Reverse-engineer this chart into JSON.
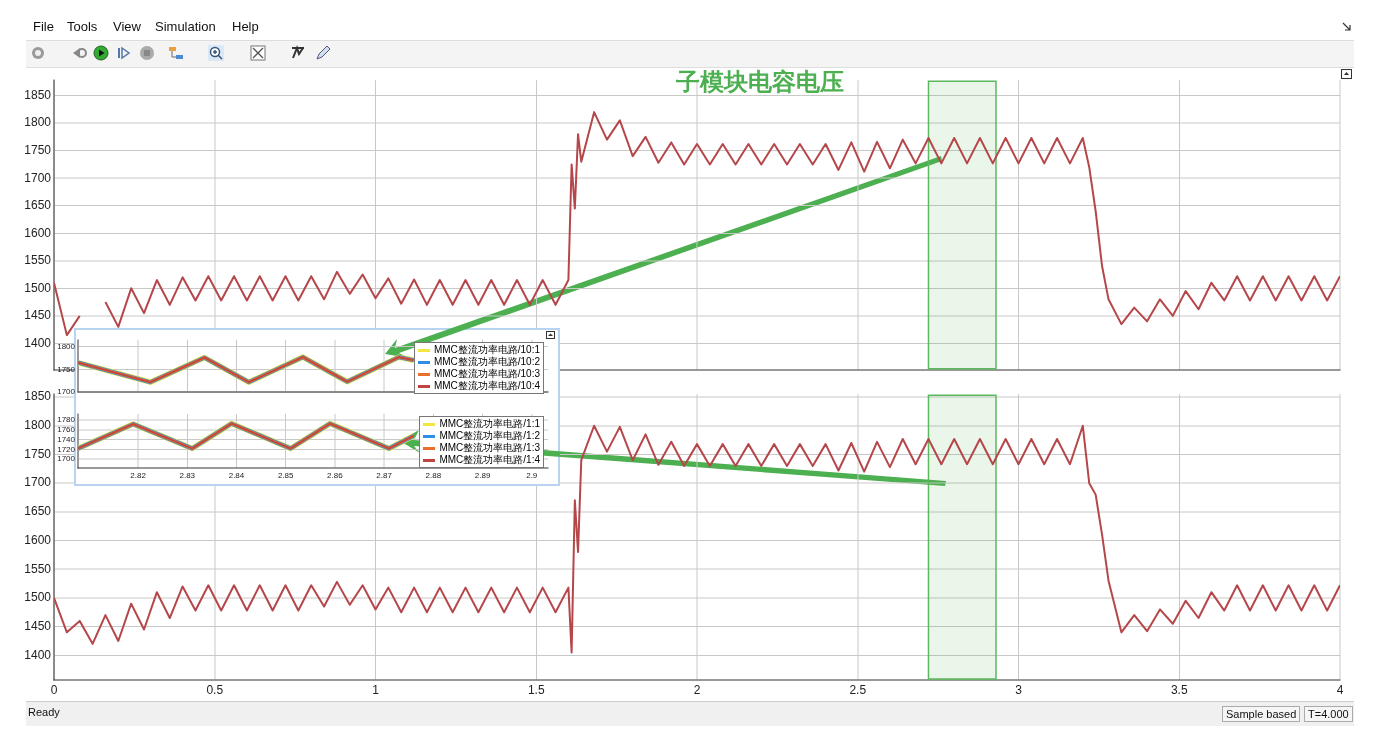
{
  "chart_data": [
    {
      "type": "line",
      "title": "子模块电容电压",
      "annotations": [
        "File",
        "Tools",
        "View",
        "Simulation",
        "Help",
        "Ready",
        "Sample based",
        "T=4.000"
      ],
      "x": [
        0,
        0.04,
        0.08,
        0.12,
        0.16,
        0.2,
        0.24,
        0.28,
        0.32,
        0.36,
        0.4,
        0.44,
        0.48,
        0.52,
        0.56,
        0.6,
        0.64,
        0.68,
        0.72,
        0.76,
        0.8,
        0.84,
        0.88,
        0.92,
        0.96,
        1,
        1.04,
        1.08,
        1.12,
        1.16,
        1.2,
        1.24,
        1.28,
        1.32,
        1.36,
        1.4,
        1.44,
        1.48,
        1.52,
        1.56,
        1.6,
        1.61,
        1.62,
        1.63,
        1.64,
        1.68,
        1.72,
        1.76,
        1.8,
        1.84,
        1.88,
        1.92,
        1.96,
        2,
        2.04,
        2.08,
        2.12,
        2.16,
        2.2,
        2.24,
        2.28,
        2.32,
        2.36,
        2.4,
        2.44,
        2.48,
        2.52,
        2.56,
        2.6,
        2.64,
        2.68,
        2.72,
        2.76,
        2.8,
        2.84,
        2.88,
        2.92,
        2.96,
        3,
        3.04,
        3.08,
        3.12,
        3.16,
        3.2,
        3.22,
        3.24,
        3.26,
        3.28,
        3.32,
        3.36,
        3.4,
        3.44,
        3.48,
        3.52,
        3.56,
        3.6,
        3.64,
        3.68,
        3.72,
        3.76,
        3.8,
        3.84,
        3.88,
        3.92,
        3.96,
        4
      ],
      "series": [
        {
          "color": "#b5474b",
          "values": [
            1510,
            1415,
            1450,
            null,
            1475,
            1430,
            1500,
            1455,
            1515,
            1470,
            1520,
            1478,
            1522,
            1478,
            1522,
            1478,
            1522,
            1478,
            1522,
            1478,
            1522,
            1480,
            1530,
            1490,
            1525,
            1482,
            1518,
            1472,
            1516,
            1470,
            1515,
            1470,
            1515,
            1470,
            1515,
            1470,
            1515,
            1470,
            1515,
            1470,
            1515,
            1725,
            1645,
            1780,
            1730,
            1820,
            1770,
            1805,
            1740,
            1775,
            1728,
            1765,
            1725,
            1762,
            1725,
            1762,
            1725,
            1762,
            1725,
            1762,
            1725,
            1762,
            1725,
            1762,
            1715,
            1765,
            1712,
            1766,
            1718,
            1770,
            1727,
            1773,
            1727,
            1773,
            1727,
            1773,
            1727,
            1773,
            1727,
            1773,
            1727,
            1773,
            1727,
            1773,
            1720,
            1640,
            1540,
            1480,
            1435,
            1465,
            1440,
            1480,
            1450,
            1495,
            1462,
            1510,
            1478,
            1522,
            1478,
            1522,
            1478,
            1522,
            1478,
            1522,
            1478,
            1522
          ]
        }
      ],
      "bands": [
        {
          "axis": "x",
          "from": 2.72,
          "to": 2.93,
          "color": "#5cb85c"
        }
      ],
      "xlim": [
        0,
        4
      ],
      "xticks": [
        0,
        0.5,
        1,
        1.5,
        2,
        2.5,
        3,
        3.5,
        4
      ],
      "ylim": [
        1352,
        1878
      ],
      "yticks": [
        1400,
        1450,
        1500,
        1550,
        1600,
        1650,
        1700,
        1750,
        1800,
        1850
      ],
      "grid": true,
      "tick_labels": "y"
    },
    {
      "type": "line",
      "x": [
        0,
        0.04,
        0.08,
        0.12,
        0.16,
        0.2,
        0.24,
        0.28,
        0.32,
        0.36,
        0.4,
        0.44,
        0.48,
        0.52,
        0.56,
        0.6,
        0.64,
        0.68,
        0.72,
        0.76,
        0.8,
        0.84,
        0.88,
        0.92,
        0.96,
        1,
        1.04,
        1.08,
        1.12,
        1.16,
        1.2,
        1.24,
        1.28,
        1.32,
        1.36,
        1.4,
        1.44,
        1.48,
        1.52,
        1.56,
        1.6,
        1.61,
        1.62,
        1.63,
        1.64,
        1.68,
        1.72,
        1.76,
        1.8,
        1.84,
        1.88,
        1.92,
        1.96,
        2,
        2.04,
        2.08,
        2.12,
        2.16,
        2.2,
        2.24,
        2.28,
        2.32,
        2.36,
        2.4,
        2.44,
        2.48,
        2.52,
        2.56,
        2.6,
        2.64,
        2.68,
        2.72,
        2.76,
        2.8,
        2.84,
        2.88,
        2.92,
        2.96,
        3,
        3.04,
        3.08,
        3.12,
        3.16,
        3.2,
        3.22,
        3.24,
        3.26,
        3.28,
        3.32,
        3.36,
        3.4,
        3.44,
        3.48,
        3.52,
        3.56,
        3.6,
        3.64,
        3.68,
        3.72,
        3.76,
        3.8,
        3.84,
        3.88,
        3.92,
        3.96,
        4
      ],
      "series": [
        {
          "color": "#b5474b",
          "values": [
            1500,
            1440,
            1460,
            1420,
            1470,
            1425,
            1490,
            1445,
            1510,
            1465,
            1520,
            1478,
            1522,
            1478,
            1522,
            1478,
            1522,
            1478,
            1522,
            1478,
            1522,
            1485,
            1528,
            1488,
            1522,
            1480,
            1518,
            1475,
            1518,
            1475,
            1518,
            1475,
            1518,
            1475,
            1518,
            1475,
            1518,
            1475,
            1518,
            1475,
            1518,
            1405,
            1670,
            1580,
            1740,
            1800,
            1755,
            1798,
            1740,
            1785,
            1732,
            1772,
            1730,
            1768,
            1730,
            1768,
            1730,
            1768,
            1730,
            1768,
            1730,
            1768,
            1730,
            1768,
            1722,
            1770,
            1720,
            1772,
            1728,
            1777,
            1733,
            1777,
            1733,
            1777,
            1733,
            1777,
            1733,
            1777,
            1733,
            1777,
            1733,
            1777,
            1733,
            1800,
            1700,
            1680,
            1610,
            1530,
            1440,
            1470,
            1442,
            1480,
            1455,
            1495,
            1465,
            1510,
            1478,
            1522,
            1478,
            1522,
            1478,
            1522,
            1478,
            1522,
            1478,
            1522
          ]
        }
      ],
      "bands": [
        {
          "axis": "x",
          "from": 2.72,
          "to": 2.93,
          "color": "#5cb85c"
        }
      ],
      "xlim": [
        0,
        4
      ],
      "xticks": [
        0,
        0.5,
        1,
        1.5,
        2,
        2.5,
        3,
        3.5,
        4
      ],
      "ylim": [
        1357,
        1855
      ],
      "yticks": [
        1400,
        1450,
        1500,
        1550,
        1600,
        1650,
        1700,
        1750,
        1800,
        1850
      ],
      "grid": true
    },
    {
      "type": "line",
      "x": [
        2.8078,
        2.8225,
        2.8335,
        2.8425,
        2.8535,
        2.8625,
        2.873,
        2.876
      ],
      "series": [
        {
          "name": "MMC整流功率电路/10:1",
          "color": "#f2e640",
          "values": [
            1765,
            1722,
            1776,
            1722,
            1777,
            1723,
            1777,
            1770
          ]
        },
        {
          "name": "MMC整流功率电路/10:2",
          "color": "#2f8fe8",
          "values": [
            1765,
            1722,
            1776,
            1722,
            1777,
            1723,
            1777,
            1770
          ]
        },
        {
          "name": "MMC整流功率电路/10:3",
          "color": "#e8702a",
          "values": [
            1765,
            1722,
            1776,
            1722,
            1777,
            1723,
            1777,
            1770
          ]
        },
        {
          "name": "MMC整流功率电路/10:4",
          "color": "#c0443f",
          "values": [
            1765,
            1722,
            1776,
            1722,
            1777,
            1723,
            1777,
            1770
          ]
        }
      ],
      "xlim": [
        2.8078,
        2.9033
      ],
      "xticks": [
        2.82,
        2.83,
        2.84,
        2.85,
        2.86,
        2.87,
        2.88,
        2.89,
        2.9
      ],
      "ylim": [
        1700,
        1815
      ],
      "yticks": [
        1700,
        1750,
        1800
      ],
      "grid": true,
      "legend": "right",
      "tick_labels": "y"
    },
    {
      "type": "line",
      "x": [
        2.8078,
        2.819,
        2.831,
        2.839,
        2.851,
        2.859,
        2.871,
        2.876
      ],
      "series": [
        {
          "name": "MMC整流功率电路/1:1",
          "color": "#f2e640",
          "values": [
            1722,
            1772,
            1722,
            1773,
            1722,
            1773,
            1722,
            1748
          ]
        },
        {
          "name": "MMC整流功率电路/1:2",
          "color": "#2f8fe8",
          "values": [
            1722,
            1772,
            1722,
            1773,
            1722,
            1773,
            1722,
            1748
          ]
        },
        {
          "name": "MMC整流功率电路/1:3",
          "color": "#e8702a",
          "values": [
            1722,
            1772,
            1722,
            1773,
            1722,
            1773,
            1722,
            1748
          ]
        },
        {
          "name": "MMC整流功率电路/1:4",
          "color": "#c0443f",
          "values": [
            1722,
            1772,
            1722,
            1773,
            1722,
            1773,
            1722,
            1748
          ]
        }
      ],
      "xlim": [
        2.8078,
        2.9033
      ],
      "xticks": [
        2.82,
        2.83,
        2.84,
        2.85,
        2.86,
        2.87,
        2.88,
        2.89,
        2.9
      ],
      "ylim": [
        1682,
        1793
      ],
      "yticks": [
        1700,
        1720,
        1740,
        1760,
        1780
      ],
      "grid": true,
      "legend": "right"
    }
  ]
}
